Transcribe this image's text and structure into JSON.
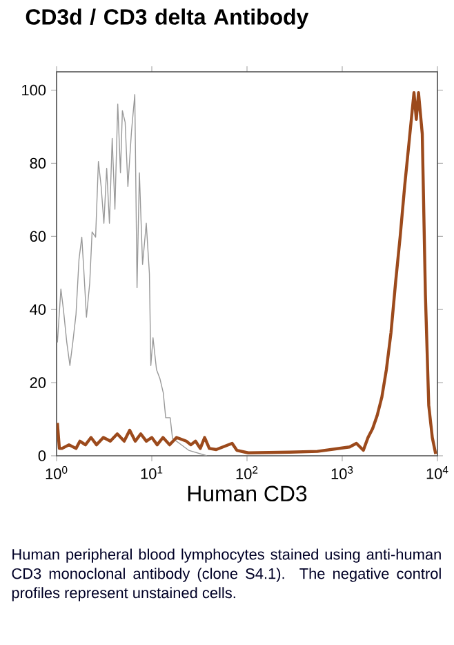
{
  "chart_data": {
    "type": "line",
    "title": "CD3d / CD3 delta Antibody",
    "xlabel": "Human CD3",
    "annotations": [
      "Human peripheral blood lymphocytes stained using anti-human CD3 monoclonal antibody (clone S4.1). The negative control profiles represent unstained cells."
    ],
    "log": "x",
    "xlim": [
      1,
      10000
    ],
    "ylim": [
      0,
      105
    ],
    "xticks": [
      {
        "value": 1,
        "label": "10$^{0}$"
      },
      {
        "value": 10,
        "label": "10$^{1}$"
      },
      {
        "value": 100,
        "label": "10$^{2}$"
      },
      {
        "value": 1000,
        "label": "10$^{3}$"
      },
      {
        "value": 10000,
        "label": "10$^{4}$"
      }
    ],
    "yticks": [
      0,
      20,
      40,
      60,
      80,
      100
    ],
    "series": [
      {
        "color": "#999999",
        "x": [
          1.02,
          1.11,
          1.18,
          1.28,
          1.38,
          1.48,
          1.6,
          1.72,
          1.84,
          1.93,
          2.06,
          2.23,
          2.36,
          2.57,
          2.75,
          2.94,
          3.14,
          3.36,
          3.59,
          3.84,
          4.1,
          4.39,
          4.69,
          4.91,
          5.25,
          5.61,
          6.12,
          6.63,
          7.0,
          7.41,
          8.0,
          8.75,
          9.44,
          9.77,
          10.3,
          11.2,
          12.2,
          13.2,
          14.0,
          15.6,
          16.5,
          19.5,
          24.4,
          38
        ],
        "values": [
          31,
          45.6,
          40,
          31,
          24.7,
          31,
          38.7,
          53.7,
          59.8,
          51,
          37.9,
          47.3,
          61.2,
          59.8,
          80.5,
          73.6,
          63.6,
          78.6,
          63.6,
          86.8,
          67.4,
          96.2,
          77.4,
          94.4,
          91.2,
          73.6,
          88.7,
          98.8,
          46,
          77.4,
          52.3,
          63.6,
          49.8,
          24.7,
          32.3,
          23.6,
          21,
          17.2,
          10.4,
          10.4,
          4.8,
          3.4,
          1.5,
          0
        ]
      },
      {
        "color": "#9c4a1c",
        "x": [
          1.02,
          1.07,
          1.14,
          1.35,
          1.6,
          1.76,
          2.01,
          2.3,
          2.63,
          3.1,
          3.67,
          4.34,
          5.13,
          5.86,
          6.7,
          7.66,
          8.76,
          10.0,
          11.4,
          13.1,
          15.4,
          18.2,
          23.0,
          25.7,
          28.8,
          32.3,
          35.9,
          40.2,
          47.5,
          69.8,
          78.2,
          103,
          281,
          548,
          1194,
          1410,
          1667,
          1866,
          2084,
          2327,
          2605,
          2910,
          3250,
          3638,
          4062,
          4537,
          5077,
          5670,
          5998,
          6327,
          6930,
          7477,
          8105,
          8831,
          9580
        ],
        "values": [
          9,
          2,
          2,
          3,
          2,
          4,
          3,
          5,
          3,
          5,
          4,
          6,
          4,
          7,
          4,
          6,
          4,
          5,
          3,
          5,
          3,
          5,
          4,
          3,
          4,
          2,
          5,
          2,
          1.7,
          3.4,
          1.5,
          0.8,
          1,
          1.2,
          2.4,
          3.4,
          1.5,
          5,
          7.4,
          11,
          16,
          23.6,
          33.6,
          47.5,
          60,
          74,
          86.7,
          99.3,
          92,
          99.3,
          88,
          44,
          13.8,
          5,
          0.5
        ]
      }
    ]
  }
}
